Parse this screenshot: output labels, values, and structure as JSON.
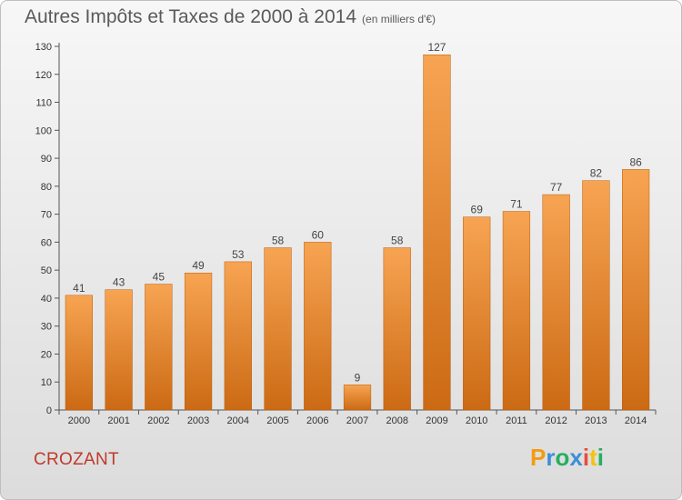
{
  "header": {
    "title": "Autres Impôts et Taxes de 2000 à 2014",
    "unit": "(en milliers d'€)"
  },
  "commune": "CROZANT",
  "logo": {
    "letters": [
      "P",
      "r",
      "o",
      "x",
      "i",
      "t",
      "i"
    ],
    "colors": [
      "#f39c12",
      "#3b8fd6",
      "#27ae60",
      "#3b8fd6",
      "#e74c3c",
      "#f1c40f",
      "#27ae60"
    ]
  },
  "colors": {
    "bar_light": "#f7a452",
    "bar_dark": "#cc6a14",
    "axis": "#555555",
    "grid": "#cfcfcf"
  },
  "chart_data": {
    "type": "bar",
    "title": "Autres Impôts et Taxes de 2000 à 2014",
    "subtitle": "(en milliers d'€)",
    "categories": [
      "2000",
      "2001",
      "2002",
      "2003",
      "2004",
      "2005",
      "2006",
      "2007",
      "2008",
      "2009",
      "2010",
      "2011",
      "2012",
      "2013",
      "2014"
    ],
    "values": [
      41,
      43,
      45,
      49,
      53,
      58,
      60,
      9,
      58,
      127,
      69,
      71,
      77,
      82,
      86
    ],
    "ylim": [
      0,
      130
    ],
    "yticks": [
      0,
      10,
      20,
      30,
      40,
      50,
      60,
      70,
      80,
      90,
      100,
      110,
      120,
      130
    ],
    "grid": false,
    "data_labels": true
  }
}
